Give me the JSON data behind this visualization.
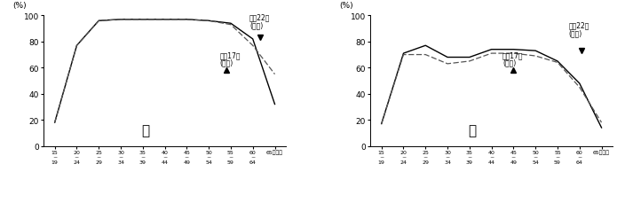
{
  "x_labels": [
    "15\n~\n19",
    "20\n~\n24",
    "25\n~\n29",
    "30\n~\n34",
    "35\n~\n39",
    "40\n~\n44",
    "45\n~\n49",
    "50\n~\n54",
    "55\n~\n59",
    "60\n~\n64",
    "65歳以上"
  ],
  "male_h17": [
    18,
    77,
    96,
    97,
    97,
    97,
    97,
    96,
    93,
    77,
    55
  ],
  "male_h22": [
    18,
    77,
    96,
    97,
    97,
    97,
    97,
    96,
    94,
    82,
    32
  ],
  "female_h17": [
    17,
    70,
    70,
    63,
    65,
    71,
    71,
    69,
    64,
    45,
    18
  ],
  "female_h22": [
    17,
    71,
    77,
    68,
    68,
    74,
    74,
    73,
    65,
    48,
    14
  ],
  "ylim": [
    0,
    100
  ],
  "yticks": [
    0,
    20,
    40,
    60,
    80,
    100
  ],
  "ylabel": "(%)",
  "male_label": "男",
  "female_label": "女",
  "legend_h22_line1": "平成22年",
  "legend_h22_line2": "(実線)",
  "legend_h17_line1": "平成17年",
  "legend_h17_line2": "(点線)",
  "solid_color": "#000000",
  "dashed_color": "#555555",
  "background_color": "#ffffff"
}
